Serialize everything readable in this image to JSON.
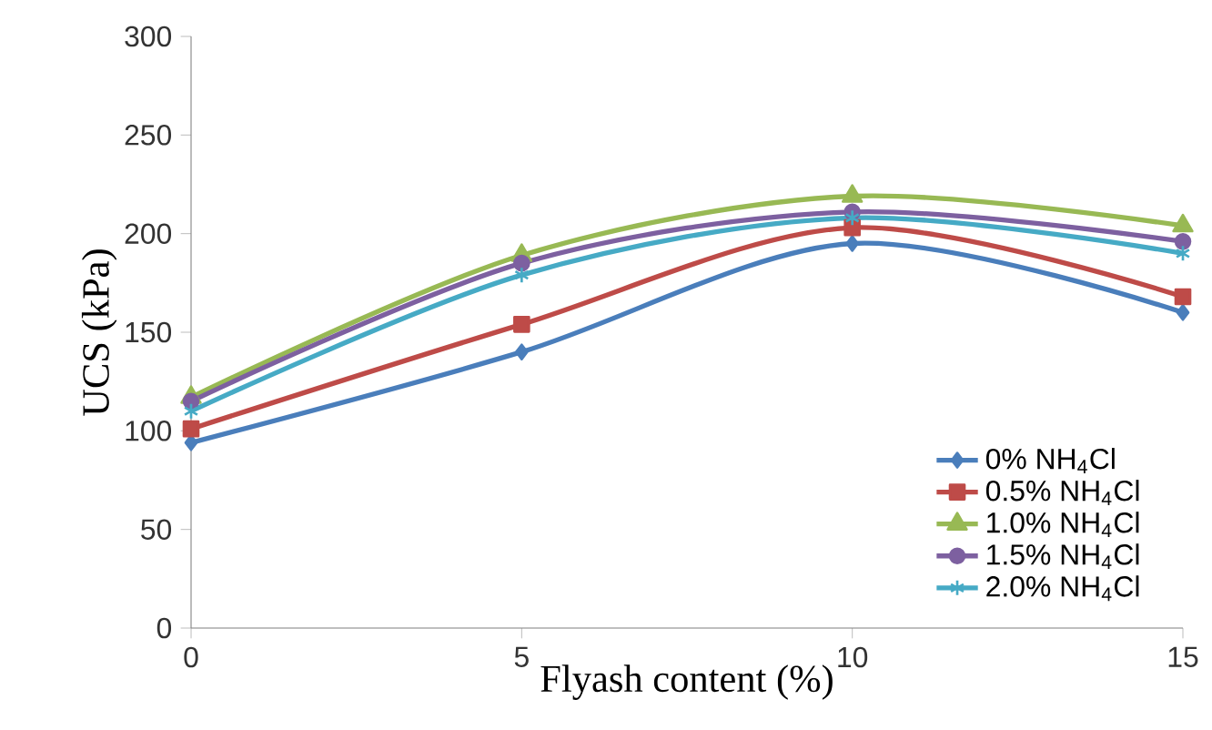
{
  "chart_data": {
    "type": "line",
    "xlabel": "Flyash content (%)",
    "ylabel": "UCS  (kPa)",
    "x": [
      0,
      5,
      10,
      15
    ],
    "xlim": [
      0,
      15
    ],
    "xticks": [
      0,
      5,
      10,
      15
    ],
    "ylim": [
      0,
      300
    ],
    "yticks": [
      0,
      50,
      100,
      150,
      200,
      250,
      300
    ],
    "grid": false,
    "legend": "bottom right",
    "line_style": "solid",
    "series": [
      {
        "name": "0% NH$_{4}$Cl",
        "color": "#4a7ebb",
        "marker": "diamond",
        "values": [
          94,
          140,
          195,
          160
        ]
      },
      {
        "name": "0.5% NH$_{4}$Cl",
        "color": "#be4b48",
        "marker": "square",
        "values": [
          101,
          154,
          203,
          168
        ]
      },
      {
        "name": "1.0% NH$_{4}$Cl",
        "color": "#98b954",
        "marker": "triangle",
        "values": [
          117,
          189,
          219,
          204
        ]
      },
      {
        "name": "1.5% NH$_{4}$Cl",
        "color": "#7d60a0",
        "marker": "circle",
        "values": [
          115,
          185,
          211,
          196
        ]
      },
      {
        "name": "2.0% NH$_{4}$Cl",
        "color": "#46aac5",
        "marker": "cross",
        "values": [
          110,
          179,
          208,
          190
        ]
      }
    ]
  }
}
